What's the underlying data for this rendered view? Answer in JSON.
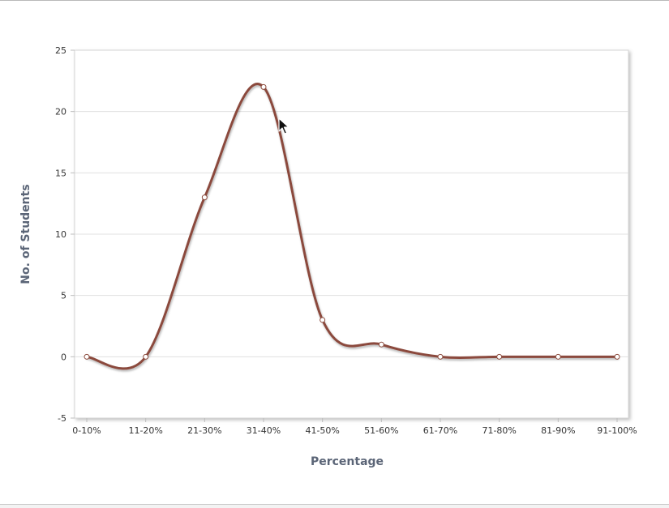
{
  "chart_data": {
    "type": "line",
    "smooth": true,
    "categories": [
      "0-10%",
      "11-20%",
      "21-30%",
      "31-40%",
      "41-50%",
      "51-60%",
      "61-70%",
      "71-80%",
      "81-90%",
      "91-100%"
    ],
    "series": [
      {
        "values": [
          0,
          0,
          13,
          22,
          3,
          1,
          0,
          0,
          0,
          0
        ]
      }
    ],
    "xlabel": "Percentage",
    "ylabel": "No. of Students",
    "ylim": [
      -5,
      25
    ],
    "yticks": [
      "-5",
      "0",
      "5",
      "10",
      "15",
      "20",
      "25"
    ],
    "grid": true,
    "legend": "none",
    "colors": {
      "line": "#8b4a3c",
      "marker_fill": "#ffffff",
      "marker_stroke": "#8b4a3c",
      "grid": "#e0e0e0",
      "axis_title": "#5b6577"
    }
  },
  "cursor": {
    "icon": "mouse-pointer-icon"
  }
}
